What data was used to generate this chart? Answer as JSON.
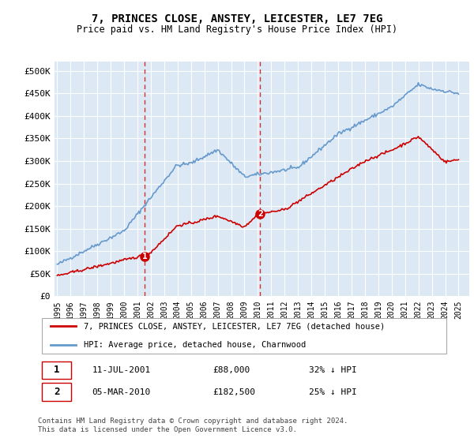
{
  "title": "7, PRINCES CLOSE, ANSTEY, LEICESTER, LE7 7EG",
  "subtitle": "Price paid vs. HM Land Registry's House Price Index (HPI)",
  "ylabel_ticks": [
    "£0",
    "£50K",
    "£100K",
    "£150K",
    "£200K",
    "£250K",
    "£300K",
    "£350K",
    "£400K",
    "£450K",
    "£500K"
  ],
  "ytick_values": [
    0,
    50000,
    100000,
    150000,
    200000,
    250000,
    300000,
    350000,
    400000,
    450000,
    500000
  ],
  "ylim": [
    0,
    520000
  ],
  "xlim_start": 1995.0,
  "xlim_end": 2025.5,
  "bg_color": "#dce9f5",
  "plot_bg": "#dce9f5",
  "line1_color": "#cc0000",
  "line2_color": "#6699cc",
  "vline_color": "#cc0000",
  "sale1_x": 2001.53,
  "sale1_y": 88000,
  "sale1_label": "1",
  "sale2_x": 2010.17,
  "sale2_y": 182500,
  "sale2_label": "2",
  "legend_line1": "7, PRINCES CLOSE, ANSTEY, LEICESTER, LE7 7EG (detached house)",
  "legend_line2": "HPI: Average price, detached house, Charnwood",
  "table_row1_num": "1",
  "table_row1_date": "11-JUL-2001",
  "table_row1_price": "£88,000",
  "table_row1_hpi": "32% ↓ HPI",
  "table_row2_num": "2",
  "table_row2_date": "05-MAR-2010",
  "table_row2_price": "£182,500",
  "table_row2_hpi": "25% ↓ HPI",
  "footer": "Contains HM Land Registry data © Crown copyright and database right 2024.\nThis data is licensed under the Open Government Licence v3.0.",
  "xtick_years": [
    1995,
    1996,
    1997,
    1998,
    1999,
    2000,
    2001,
    2002,
    2003,
    2004,
    2005,
    2006,
    2007,
    2008,
    2009,
    2010,
    2011,
    2012,
    2013,
    2014,
    2015,
    2016,
    2017,
    2018,
    2019,
    2020,
    2021,
    2022,
    2023,
    2024,
    2025
  ]
}
